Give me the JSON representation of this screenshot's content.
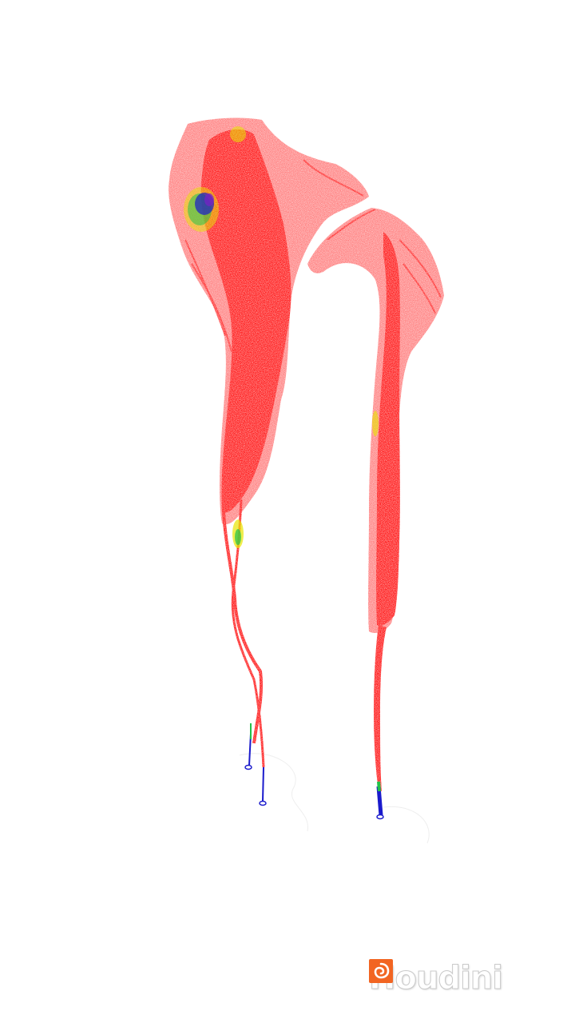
{
  "viewport": {
    "background": "#ffffff",
    "particle_colors": {
      "primary": "#ff0000",
      "accent_yellow": "#e8e600",
      "accent_green": "#22c24a",
      "accent_cyan": "#16c8d8",
      "accent_blue": "#1a1acc",
      "accent_purple": "#7a20c8"
    }
  },
  "watermark": {
    "brand": "Houdini",
    "logo_color": "#f26522",
    "logo_icon": "houdini-swirl-icon"
  }
}
